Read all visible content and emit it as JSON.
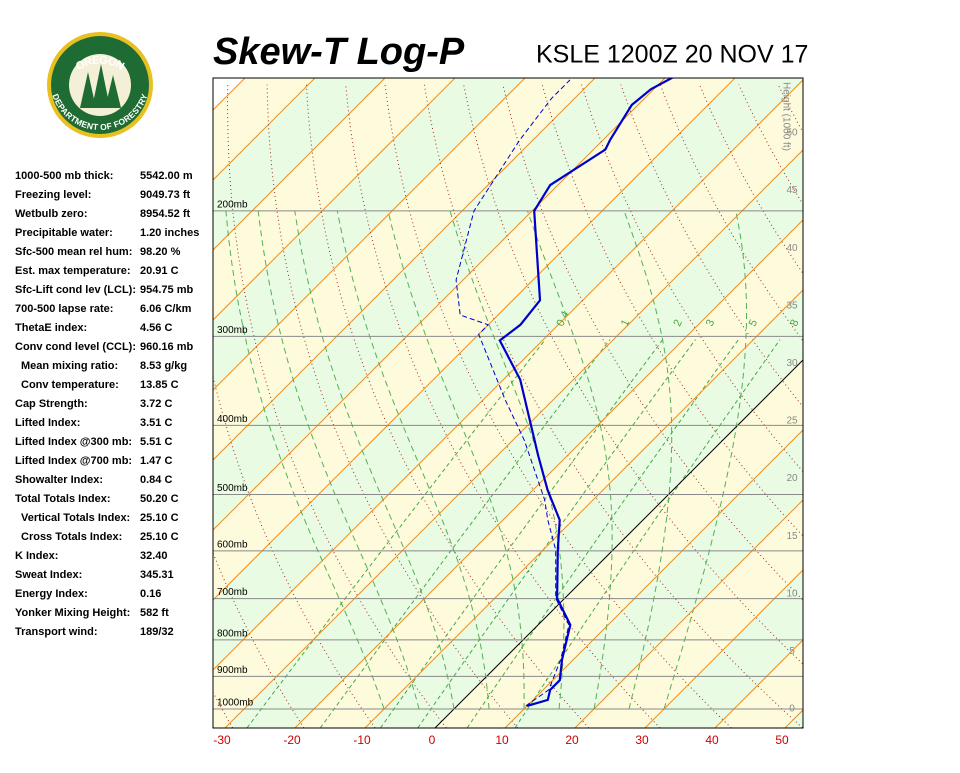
{
  "logo": {
    "top": "OREGON",
    "bottom": "DEPARTMENT OF FORESTRY"
  },
  "title": "Skew-T Log-P",
  "station": "KSLE 1200Z 20 NOV 17",
  "indices": [
    {
      "label": "1000-500 mb thick:",
      "value": "5542.00 m"
    },
    {
      "label": "Freezing level:",
      "value": "9049.73 ft"
    },
    {
      "label": "Wetbulb zero:",
      "value": "8954.52 ft"
    },
    {
      "label": "Precipitable water:",
      "value": "1.20 inches"
    },
    {
      "label": "Sfc-500 mean rel hum:",
      "value": "98.20 %"
    },
    {
      "label": "Est. max temperature:",
      "value": "20.91 C"
    },
    {
      "label": "Sfc-Lift cond lev (LCL):",
      "value": "954.75 mb"
    },
    {
      "label": "700-500 lapse rate:",
      "value": "6.06 C/km"
    },
    {
      "label": "ThetaE index:",
      "value": "4.56 C"
    },
    {
      "label": "Conv cond level (CCL):",
      "value": "960.16 mb"
    },
    {
      "label": "Mean mixing ratio:",
      "value": "8.53 g/kg",
      "indent": true
    },
    {
      "label": "Conv temperature:",
      "value": "13.85 C",
      "indent": true
    },
    {
      "label": "Cap Strength:",
      "value": "3.72 C"
    },
    {
      "label": "Lifted Index:",
      "value": "3.51 C"
    },
    {
      "label": "Lifted Index @300 mb:",
      "value": "5.51 C"
    },
    {
      "label": "Lifted Index @700 mb:",
      "value": "1.47 C"
    },
    {
      "label": "Showalter Index:",
      "value": "0.84 C"
    },
    {
      "label": "Total Totals Index:",
      "value": "50.20 C"
    },
    {
      "label": "Vertical Totals Index:",
      "value": "25.10 C",
      "indent": true
    },
    {
      "label": "Cross Totals Index:",
      "value": "25.10 C",
      "indent": true
    },
    {
      "label": "K Index:",
      "value": "32.40"
    },
    {
      "label": "Sweat Index:",
      "value": "345.31"
    },
    {
      "label": "Energy Index:",
      "value": "0.16"
    },
    {
      "label": "Yonker Mixing Height:",
      "value": "582 ft"
    },
    {
      "label": "Transport wind:",
      "value": "189/32"
    }
  ],
  "chart_data": {
    "type": "skewt",
    "xticks": [
      -30,
      -20,
      -10,
      0,
      10,
      20,
      30,
      40,
      50
    ],
    "ylim": [
      1063,
      130
    ],
    "pressure_levels": [
      {
        "value": 200,
        "label": "200mb"
      },
      {
        "value": 300,
        "label": "300mb"
      },
      {
        "value": 400,
        "label": "400mb"
      },
      {
        "value": 500,
        "label": "500mb"
      },
      {
        "value": 600,
        "label": "600mb"
      },
      {
        "value": 700,
        "label": "700mb"
      },
      {
        "value": 800,
        "label": "800mb"
      },
      {
        "value": 900,
        "label": "900mb"
      },
      {
        "value": 1000,
        "label": "1000mb"
      }
    ],
    "height_label": "Height (1000 ft)",
    "height_ticks": [
      0,
      5,
      10,
      15,
      20,
      25,
      30,
      35,
      40,
      45,
      50
    ],
    "mixing_ratios": [
      0.4,
      1,
      2,
      3,
      5,
      8
    ],
    "temperature": {
      "color": "#0000cc",
      "pressure": [
        990,
        971,
        940,
        911,
        853,
        762,
        699,
        598,
        543,
        493,
        440,
        345,
        304,
        289,
        267,
        200,
        184,
        164,
        159,
        142,
        135,
        130
      ],
      "values": [
        10,
        12.1,
        11,
        11,
        8.4,
        4.6,
        -1.1,
        -7.9,
        -11.9,
        -17.9,
        -24.3,
        -37.6,
        -46.1,
        -45.4,
        -46.1,
        -59.7,
        -61.1,
        -58.3,
        -59,
        -60.9,
        -60.4,
        -59
      ]
    },
    "dewpoint": {
      "color": "#0000cc",
      "pressure": [
        990,
        940,
        853,
        762,
        699,
        598,
        543,
        509,
        420,
        368,
        298,
        289,
        280,
        250,
        200,
        159,
        139,
        131
      ],
      "values": [
        9.8,
        10.8,
        8.2,
        4.4,
        -1.3,
        -8.2,
        -13.6,
        -16.9,
        -28.3,
        -36.9,
        -50,
        -50,
        -55.4,
        -61,
        -68.3,
        -71.9,
        -73.3,
        -73.3
      ]
    }
  }
}
